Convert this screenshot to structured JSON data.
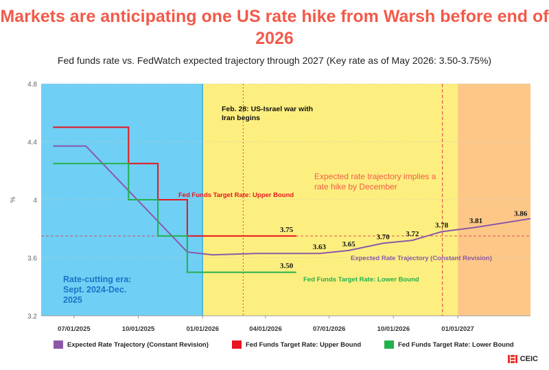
{
  "title": "Markets are anticipating one US rate hike from Warsh before end of 2026",
  "subtitle": "Fed funds rate vs. FedWatch expected trajectory through 2027 (Key rate as of May 2026: 3.50-3.75%)",
  "brand": "CEIC",
  "colors": {
    "trajectory": "#8b58a8",
    "upper": "#e8141e",
    "lower": "#22b14c",
    "era_cut": "#70cff4",
    "era_mid": "#fdef7f",
    "era_future": "#fdc887",
    "annotation_red": "#f25a4a",
    "annotation_blue": "#1a73c7"
  },
  "chart_data": {
    "type": "line",
    "ylabel": "%",
    "ylim": [
      3.2,
      4.8
    ],
    "yticks": [
      "3.2",
      "3.6",
      "4",
      "4.4",
      "4.8"
    ],
    "xlim": [
      "2025-05-15",
      "2027-04-15"
    ],
    "xticks": [
      "07/01/2025",
      "10/01/2025",
      "01/01/2026",
      "04/01/2026",
      "07/01/2026",
      "10/01/2026",
      "01/01/2027"
    ],
    "x_tick_dates": [
      "2025-07-01",
      "2025-10-01",
      "2026-01-01",
      "2026-04-01",
      "2026-07-01",
      "2026-10-01",
      "2027-01-01"
    ],
    "regions": [
      {
        "name": "era_cut",
        "start": "2025-05-15",
        "end": "2026-01-01"
      },
      {
        "name": "era_mid",
        "start": "2026-01-01",
        "end": "2027-01-01"
      },
      {
        "name": "era_future",
        "start": "2027-01-01",
        "end": "2027-04-15"
      }
    ],
    "vlines": [
      "2026-02-28",
      "2026-12-10"
    ],
    "hline": 3.75,
    "series": [
      {
        "name": "Expected Rate Trajectory (Constant Revision)",
        "key": "trajectory",
        "points": [
          [
            "2025-06-01",
            4.37
          ],
          [
            "2025-07-18",
            4.37
          ],
          [
            "2025-12-10",
            3.64
          ],
          [
            "2026-01-15",
            3.62
          ],
          [
            "2026-03-18",
            3.63
          ],
          [
            "2026-06-17",
            3.63
          ],
          [
            "2026-07-29",
            3.65
          ],
          [
            "2026-09-16",
            3.7
          ],
          [
            "2026-10-28",
            3.72
          ],
          [
            "2026-12-09",
            3.78
          ],
          [
            "2027-01-27",
            3.81
          ],
          [
            "2027-04-15",
            3.87
          ]
        ]
      },
      {
        "name": "Fed Funds Target Rate: Upper Bound",
        "key": "upper",
        "points": [
          [
            "2025-06-01",
            4.5
          ],
          [
            "2025-09-17",
            4.5
          ],
          [
            "2025-09-17",
            4.25
          ],
          [
            "2025-10-29",
            4.25
          ],
          [
            "2025-10-29",
            4.0
          ],
          [
            "2025-12-10",
            4.0
          ],
          [
            "2025-12-10",
            3.75
          ],
          [
            "2026-05-15",
            3.75
          ]
        ]
      },
      {
        "name": "Fed Funds Target Rate: Lower Bound",
        "key": "lower",
        "points": [
          [
            "2025-06-01",
            4.25
          ],
          [
            "2025-09-17",
            4.25
          ],
          [
            "2025-09-17",
            4.0
          ],
          [
            "2025-10-29",
            4.0
          ],
          [
            "2025-10-29",
            3.75
          ],
          [
            "2025-12-10",
            3.75
          ],
          [
            "2025-12-10",
            3.5
          ],
          [
            "2026-05-15",
            3.5
          ]
        ]
      }
    ],
    "data_labels": [
      {
        "text": "3.75",
        "x": "2026-05-01",
        "y": 3.75
      },
      {
        "text": "3.50",
        "x": "2026-05-01",
        "y": 3.5
      },
      {
        "text": "3.63",
        "x": "2026-06-17",
        "y": 3.63
      },
      {
        "text": "3.65",
        "x": "2026-07-29",
        "y": 3.65
      },
      {
        "text": "3.70",
        "x": "2026-09-16",
        "y": 3.7
      },
      {
        "text": "3.72",
        "x": "2026-10-28",
        "y": 3.72
      },
      {
        "text": "3.78",
        "x": "2026-12-09",
        "y": 3.78
      },
      {
        "text": "3.81",
        "x": "2027-01-27",
        "y": 3.81
      },
      {
        "text": "3.86",
        "x": "2027-04-01",
        "y": 3.86
      }
    ],
    "annotations": {
      "war": "Feb. 28: US-Israel war with Iran begins",
      "hike": "Expected rate trajectory implies a rate hike by December",
      "era": "Rate-cutting era: Sept. 2024-Dec. 2025",
      "upper_label": "Fed Funds Target Rate: Upper Bound",
      "lower_label": "Fed Funds Target Rate: Lower Bound",
      "traj_label": "Expected Rate Trajectory (Constant Revision)"
    }
  }
}
